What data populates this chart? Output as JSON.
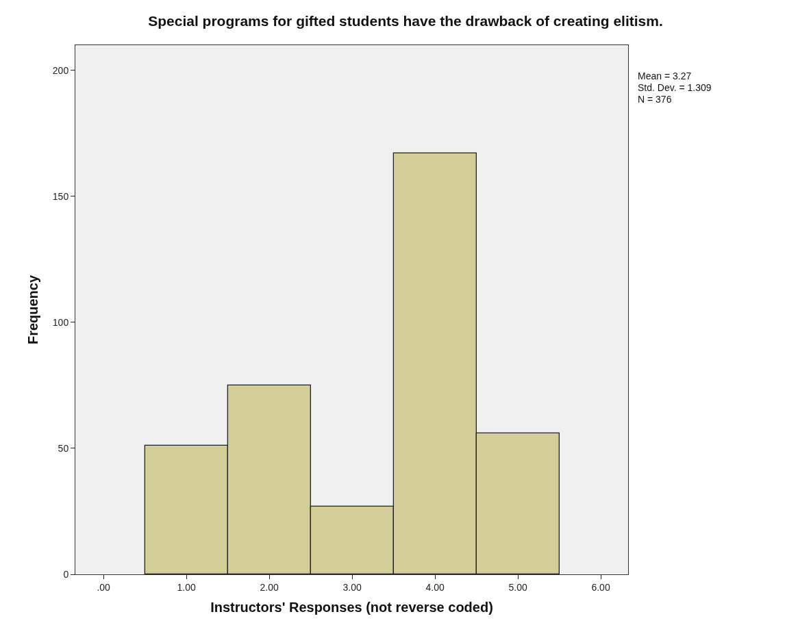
{
  "chart_data": {
    "type": "histogram",
    "title": "Special programs for gifted students have the drawback of creating elitism.",
    "xlabel": "Instructors' Responses (not reverse coded)",
    "ylabel": "Frequency",
    "bins": [
      0.5,
      1.5,
      2.5,
      3.5,
      4.5,
      5.5
    ],
    "values": [
      51,
      75,
      27,
      167,
      56
    ],
    "color": "#d3ce97",
    "xlim": [
      -0.34,
      6.33
    ],
    "ylim": [
      0,
      210
    ],
    "xticks": [
      {
        "value": 0,
        "label": ".00"
      },
      {
        "value": 1,
        "label": "1.00"
      },
      {
        "value": 2,
        "label": "2.00"
      },
      {
        "value": 3,
        "label": "3.00"
      },
      {
        "value": 4,
        "label": "4.00"
      },
      {
        "value": 5,
        "label": "5.00"
      },
      {
        "value": 6,
        "label": "6.00"
      }
    ],
    "yticks": [
      0,
      50,
      100,
      150,
      200
    ],
    "annotations": [
      "Mean = 3.27",
      "Std. Dev. = 1.309",
      "N = 376"
    ],
    "grid": false
  }
}
